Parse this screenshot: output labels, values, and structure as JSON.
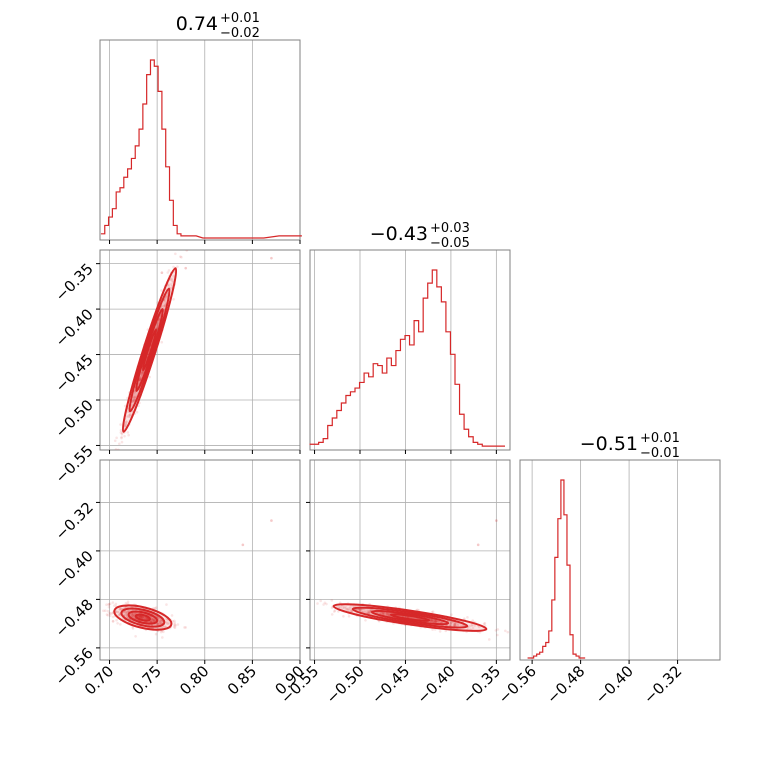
{
  "chart_data": {
    "type": "corner",
    "color": "#d62728",
    "params": [
      {
        "title_value": "0.74",
        "title_plus": "+0.01",
        "title_minus": "−0.02",
        "range": [
          0.69,
          0.9
        ],
        "ticks": [
          0.7,
          0.75,
          0.8,
          0.85,
          0.9
        ],
        "tick_labels": [
          "0.70",
          "0.75",
          "0.80",
          "0.85",
          "0.90"
        ],
        "hist_bin_centers": [
          0.693,
          0.697,
          0.701,
          0.705,
          0.709,
          0.713,
          0.717,
          0.721,
          0.725,
          0.729,
          0.733,
          0.737,
          0.741,
          0.745,
          0.749,
          0.753,
          0.757,
          0.761,
          0.765,
          0.769,
          0.773,
          0.777,
          0.781,
          0.785,
          0.789,
          0.8,
          0.82,
          0.84,
          0.86,
          0.88,
          0.9
        ],
        "hist_values": [
          2,
          6,
          10,
          14,
          22,
          24,
          29,
          33,
          38,
          44,
          52,
          64,
          78,
          85,
          82,
          70,
          52,
          34,
          18,
          6,
          2,
          1,
          1,
          1,
          1,
          0,
          0,
          0,
          0,
          1,
          1
        ]
      },
      {
        "title_value": "−0.43",
        "title_plus": "+0.03",
        "title_minus": "−0.05",
        "range": [
          -0.555,
          -0.335
        ],
        "ticks": [
          -0.55,
          -0.5,
          -0.45,
          -0.4,
          -0.35
        ],
        "tick_labels": [
          "−0.55",
          "−0.50",
          "−0.45",
          "−0.40",
          "−0.35"
        ],
        "y_tick_labels": [
          "−0.35",
          "−0.40",
          "−0.45",
          "−0.50",
          "−0.55"
        ],
        "hist_bin_centers": [
          -0.553,
          -0.548,
          -0.543,
          -0.538,
          -0.533,
          -0.528,
          -0.523,
          -0.518,
          -0.513,
          -0.508,
          -0.503,
          -0.498,
          -0.493,
          -0.488,
          -0.483,
          -0.478,
          -0.473,
          -0.468,
          -0.463,
          -0.458,
          -0.453,
          -0.448,
          -0.443,
          -0.438,
          -0.433,
          -0.428,
          -0.423,
          -0.418,
          -0.413,
          -0.408,
          -0.403,
          -0.398,
          -0.393,
          -0.388,
          -0.383,
          -0.378,
          -0.373,
          -0.368,
          -0.363,
          -0.358,
          -0.353,
          -0.348,
          -0.343
        ],
        "hist_values": [
          2,
          2,
          3,
          5,
          12,
          16,
          20,
          24,
          28,
          30,
          32,
          35,
          40,
          38,
          45,
          44,
          40,
          48,
          44,
          52,
          58,
          60,
          55,
          68,
          62,
          80,
          88,
          95,
          86,
          78,
          62,
          50,
          34,
          18,
          10,
          6,
          3,
          2,
          1,
          1,
          1,
          1,
          1
        ]
      },
      {
        "title_value": "−0.51",
        "title_plus": "+0.01",
        "title_minus": "−0.01",
        "range": [
          -0.58,
          -0.25
        ],
        "ticks": [
          -0.56,
          -0.48,
          -0.4,
          -0.32
        ],
        "tick_labels": [
          "−0.56",
          "−0.48",
          "−0.40",
          "−0.32"
        ],
        "hist_bin_centers": [
          -0.565,
          -0.56,
          -0.555,
          -0.55,
          -0.545,
          -0.54,
          -0.535,
          -0.53,
          -0.525,
          -0.52,
          -0.515,
          -0.51,
          -0.505,
          -0.5,
          -0.495,
          -0.49,
          -0.485,
          -0.48,
          -0.475
        ],
        "hist_values": [
          0,
          0,
          1,
          2,
          3,
          6,
          8,
          14,
          30,
          52,
          72,
          92,
          74,
          48,
          12,
          2,
          1,
          0,
          0
        ]
      }
    ],
    "scatter_2d": [
      {
        "x_param": 0,
        "y_param": 1,
        "mean": [
          0.742,
          -0.445
        ],
        "sd": [
          0.014,
          0.045
        ],
        "corr": 0.97,
        "outliers": [
          [
            0.87,
            -0.344
          ],
          [
            0.755,
            -0.36
          ],
          [
            0.78,
            -0.355
          ]
        ]
      },
      {
        "x_param": 0,
        "y_param": 2,
        "mean": [
          0.735,
          -0.51
        ],
        "sd": [
          0.015,
          0.01
        ],
        "corr": -0.5,
        "outliers": [
          [
            0.87,
            -0.35
          ],
          [
            0.84,
            -0.39
          ]
        ]
      },
      {
        "x_param": 1,
        "y_param": 2,
        "mean": [
          -0.445,
          -0.51
        ],
        "sd": [
          0.042,
          0.011
        ],
        "corr": -0.85,
        "outliers": [
          [
            -0.35,
            -0.35
          ],
          [
            -0.37,
            -0.39
          ]
        ]
      }
    ],
    "grid": true
  }
}
